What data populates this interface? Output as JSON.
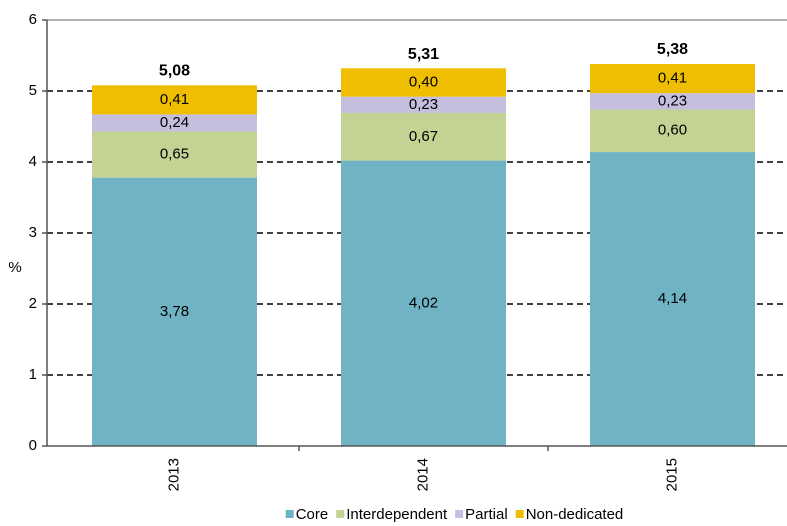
{
  "chart_data": {
    "type": "stacked_bar",
    "y_label": "%",
    "categories": [
      "2013",
      "2014",
      "2015"
    ],
    "series": [
      {
        "name": "Core",
        "color": "#6fb3c4",
        "values": [
          3.78,
          4.02,
          4.14
        ],
        "value_labels": [
          "3,78",
          "4,02",
          "4,14"
        ]
      },
      {
        "name": "Interdependent",
        "color": "#c3d393",
        "values": [
          0.65,
          0.67,
          0.6
        ],
        "value_labels": [
          "0,65",
          "0,67",
          "0,60"
        ]
      },
      {
        "name": "Partial",
        "color": "#c5bedf",
        "values": [
          0.24,
          0.23,
          0.23
        ],
        "value_labels": [
          "0,24",
          "0,23",
          "0,23"
        ]
      },
      {
        "name": "Non-dedicated",
        "color": "#f0be00",
        "values": [
          0.41,
          0.4,
          0.41
        ],
        "value_labels": [
          "0,41",
          "0,40",
          "0,41"
        ]
      }
    ],
    "totals": [
      5.08,
      5.31,
      5.38
    ],
    "total_labels": [
      "5,08",
      "5,31",
      "5,38"
    ],
    "ylim": [
      0,
      6
    ],
    "yticks": [
      0,
      1,
      2,
      3,
      4,
      5,
      6
    ],
    "grid": true,
    "legend": "bottom"
  }
}
